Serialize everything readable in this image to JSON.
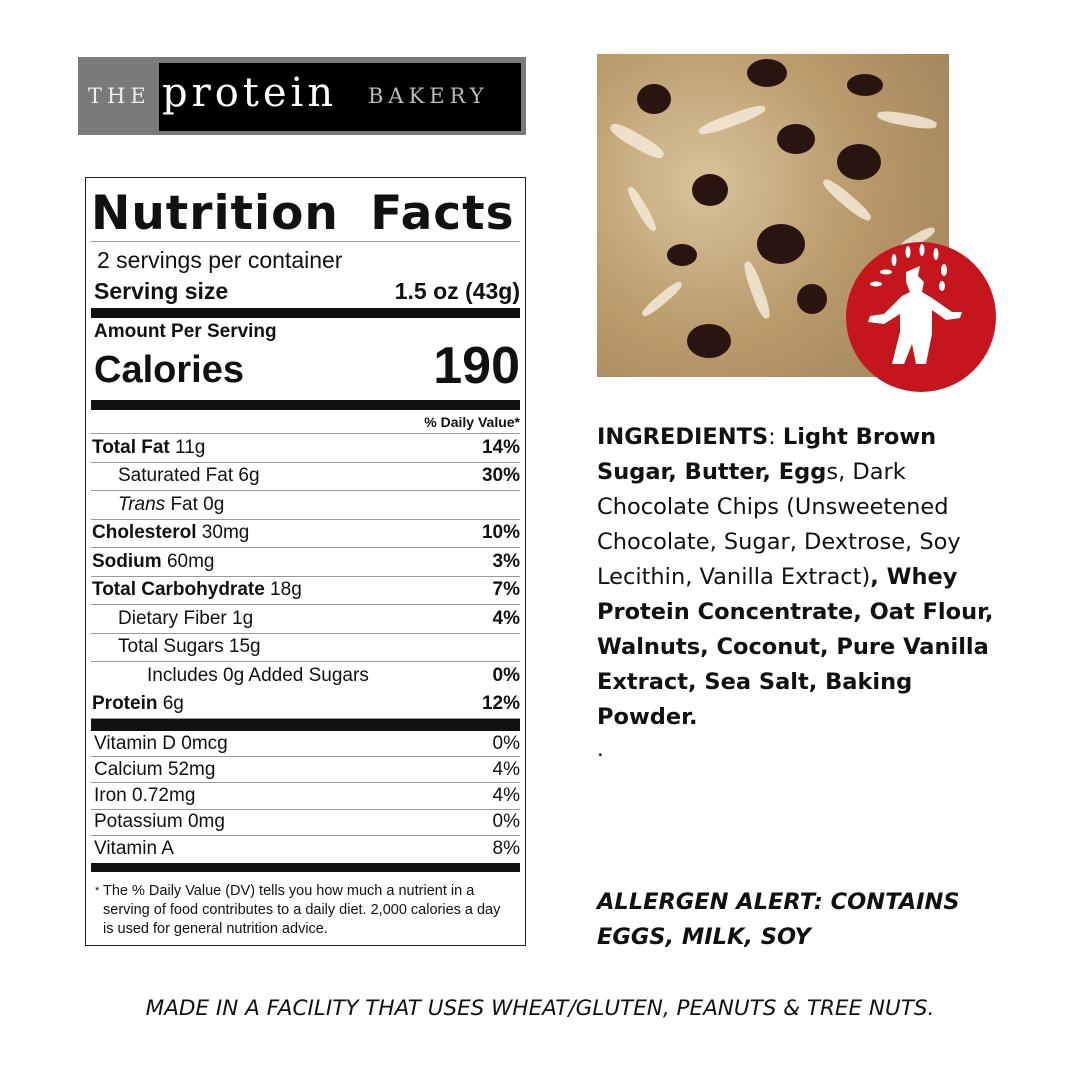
{
  "brand": {
    "the": "THE",
    "protein": "protein",
    "bakery": "BAKERY"
  },
  "nutrition": {
    "title": "Nutrition Facts",
    "servings": "2 servings per container",
    "serving_size_label": "Serving size",
    "serving_size_value": "1.5 oz (43g)",
    "amount_per_serving": "Amount Per Serving",
    "calories_label": "Calories",
    "calories_value": "190",
    "dv_header": "% Daily Value*",
    "rows": [
      {
        "bold": "Total Fat",
        "rest": " 11g",
        "dv": "14%",
        "indent": 0
      },
      {
        "bold": "",
        "rest": "Saturated Fat 6g",
        "dv": "30%",
        "indent": 1
      },
      {
        "bold": "",
        "italic": "Trans",
        "rest": " Fat 0g",
        "dv": "",
        "indent": 1
      },
      {
        "bold": "Cholesterol",
        "rest": " 30mg",
        "dv": "10%",
        "indent": 0
      },
      {
        "bold": "Sodium",
        "rest": " 60mg",
        "dv": "3%",
        "indent": 0
      },
      {
        "bold": "Total Carbohydrate",
        "rest": " 18g",
        "dv": "7%",
        "indent": 0
      },
      {
        "bold": "",
        "rest": "Dietary Fiber 1g",
        "dv": "4%",
        "indent": 1
      },
      {
        "bold": "",
        "rest": "Total Sugars 15g",
        "dv": "",
        "indent": 1
      },
      {
        "bold": "",
        "rest": "Includes 0g Added Sugars",
        "dv": "0%",
        "indent": 2
      },
      {
        "bold": "Protein",
        "rest": " 6g",
        "dv": "12%",
        "indent": 0
      }
    ],
    "vitamins": [
      {
        "label": "Vitamin D 0mcg",
        "dv": "0%"
      },
      {
        "label": "Calcium 52mg",
        "dv": "4%"
      },
      {
        "label": "Iron 0.72mg",
        "dv": "4%"
      },
      {
        "label": "Potassium 0mg",
        "dv": "0%"
      },
      {
        "label": "Vitamin A",
        "dv": "8%"
      }
    ],
    "footnote_star": "*",
    "footnote": "The % Daily Value (DV) tells you how much a nutrient in a serving of food contributes to a daily diet. 2,000 calories a day is used for general nutrition advice."
  },
  "ingredients": [
    {
      "t": "INGREDIENTS",
      "b": false
    },
    {
      "t": ": ",
      "b": false
    },
    {
      "t": "Light Brown Sugar, Butter, Egg",
      "b": true
    },
    {
      "t": "s, Dark Chocolate Chips (Unsweetened Chocolate, Sugar, Dextrose, Soy Lecithin, Vanilla Extract)",
      "b": false
    },
    {
      "t": ", Whey Protein Concentrate, Oat Flour, Walnuts, Coconut, Pure Vanilla Extract, Sea Salt, Baking Powder.",
      "b": true
    }
  ],
  "dot": ".",
  "allergen": "ALLERGEN ALERT: CONTAINS EGGS, MILK, SOY",
  "facility": "MADE IN A FACILITY THAT USES WHEAT/GLUTEN, PEANUTS & TREE NUTS.",
  "colors": {
    "badge": "#c4161c",
    "logo_bg": "#7a7a7a"
  }
}
